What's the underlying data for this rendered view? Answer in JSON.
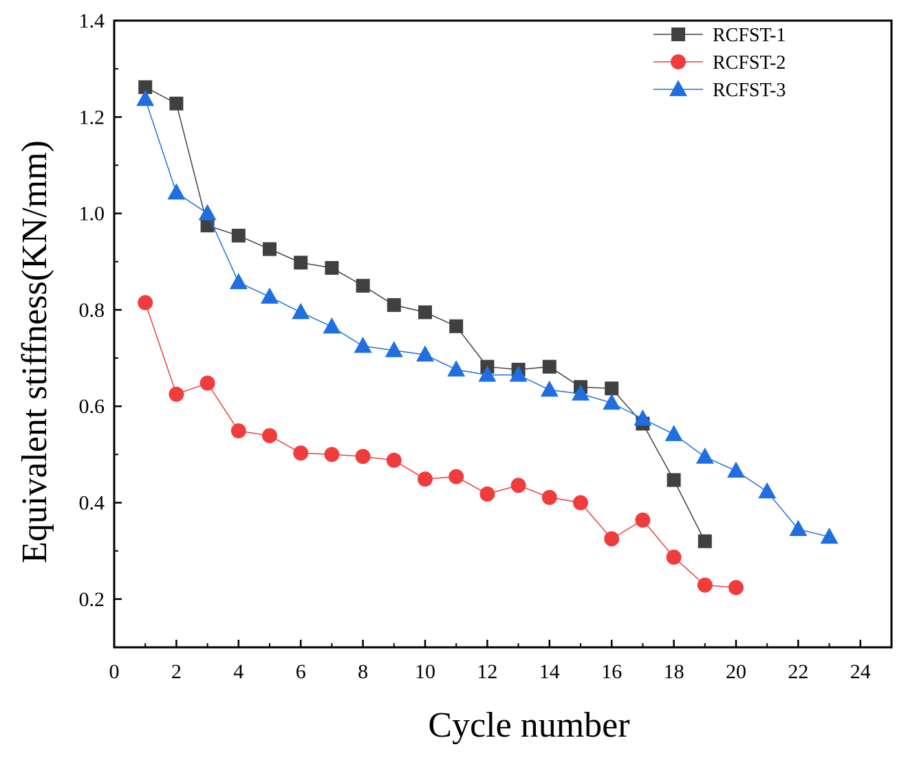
{
  "chart_data": {
    "type": "line",
    "title": "",
    "xlabel": "Cycle number",
    "ylabel": "Equivalent stiffness(KN/mm)",
    "xlim": [
      0,
      25
    ],
    "ylim": [
      0.1,
      1.4
    ],
    "x_ticks": [
      "0",
      "2",
      "4",
      "6",
      "8",
      "10",
      "12",
      "14",
      "16",
      "18",
      "20",
      "22",
      "24"
    ],
    "y_ticks": [
      "0.2",
      "0.4",
      "0.6",
      "0.8",
      "1.0",
      "1.2",
      "1.4"
    ],
    "grid": false,
    "legend_position": "top-right",
    "series": [
      {
        "name": "RCFST-1",
        "color": "#404040",
        "marker": "square",
        "x": [
          1,
          2,
          3,
          4,
          5,
          6,
          7,
          8,
          9,
          10,
          11,
          12,
          13,
          14,
          15,
          16,
          17,
          18,
          19
        ],
        "y": [
          1.262,
          1.228,
          0.975,
          0.954,
          0.926,
          0.898,
          0.887,
          0.85,
          0.81,
          0.795,
          0.766,
          0.682,
          0.676,
          0.682,
          0.64,
          0.637,
          0.564,
          0.447,
          0.32
        ]
      },
      {
        "name": "RCFST-2",
        "color": "#f03c3c",
        "marker": "circle",
        "x": [
          1,
          2,
          3,
          4,
          5,
          6,
          7,
          8,
          9,
          10,
          11,
          12,
          13,
          14,
          15,
          16,
          17,
          18,
          19,
          20
        ],
        "y": [
          0.815,
          0.625,
          0.648,
          0.549,
          0.539,
          0.503,
          0.5,
          0.496,
          0.488,
          0.449,
          0.454,
          0.418,
          0.436,
          0.411,
          0.4,
          0.325,
          0.364,
          0.287,
          0.229,
          0.224
        ]
      },
      {
        "name": "RCFST-3",
        "color": "#1f6fe0",
        "marker": "triangle",
        "x": [
          1,
          2,
          3,
          4,
          5,
          6,
          7,
          8,
          9,
          10,
          11,
          12,
          13,
          14,
          15,
          16,
          17,
          18,
          19,
          20,
          21,
          22,
          23
        ],
        "y": [
          1.237,
          1.043,
          1.0,
          0.857,
          0.827,
          0.795,
          0.765,
          0.725,
          0.716,
          0.707,
          0.676,
          0.665,
          0.665,
          0.634,
          0.626,
          0.607,
          0.574,
          0.542,
          0.495,
          0.466,
          0.423,
          0.345,
          0.329
        ]
      }
    ]
  }
}
